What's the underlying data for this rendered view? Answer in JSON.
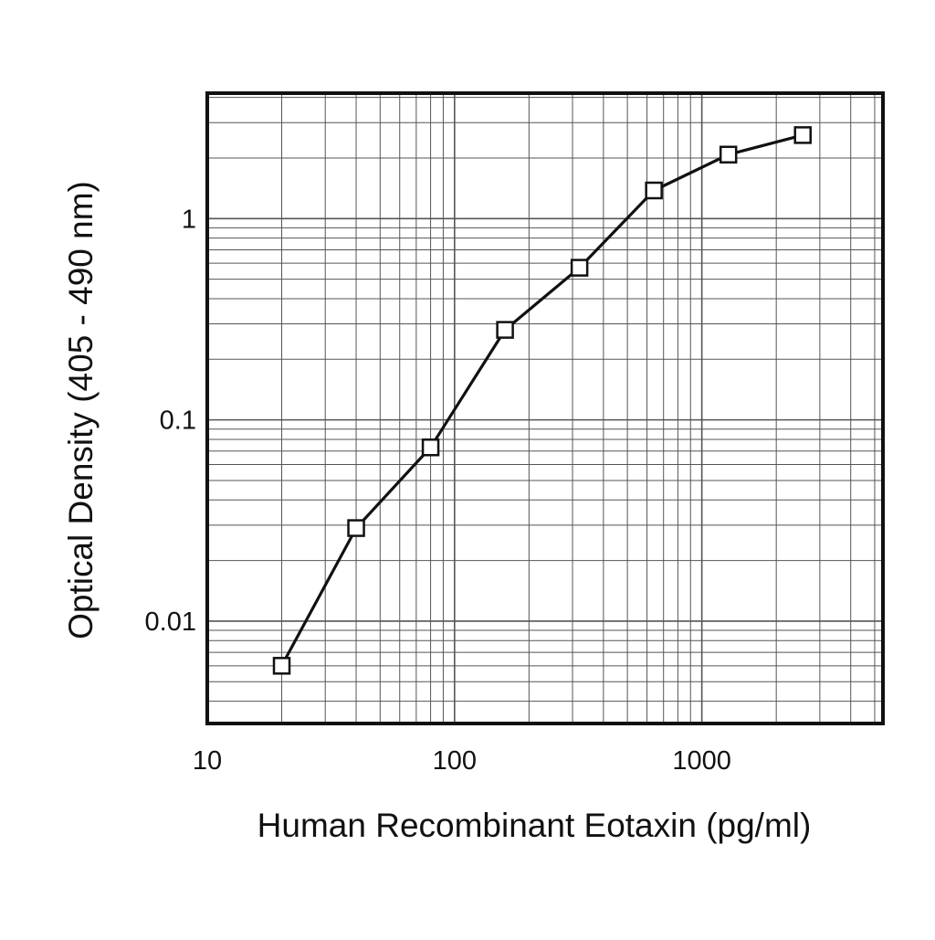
{
  "chart_data": {
    "type": "line",
    "xlabel": "Human Recombinant Eotaxin (pg/ml)",
    "ylabel": "Optical Density (405 - 490 nm)",
    "x_scale": "log",
    "y_scale": "log",
    "xlim": [
      10,
      5400
    ],
    "ylim": [
      0.0031,
      4.2
    ],
    "x_ticks": [
      {
        "value": 10,
        "label": "10"
      },
      {
        "value": 100,
        "label": "100"
      },
      {
        "value": 1000,
        "label": "1000"
      }
    ],
    "y_ticks": [
      {
        "value": 0.01,
        "label": "0.01"
      },
      {
        "value": 0.1,
        "label": "0.1"
      },
      {
        "value": 1,
        "label": "1"
      }
    ],
    "grid": true,
    "legend": "none",
    "marker": "open-square",
    "colors": {
      "line": "#111111",
      "grid": "#555555",
      "marker_fill": "#ffffff"
    },
    "series": [
      {
        "x": [
          20,
          40,
          80,
          160,
          320,
          640,
          1280,
          2560
        ],
        "values": [
          0.006,
          0.029,
          0.073,
          0.28,
          0.57,
          1.38,
          2.08,
          2.6
        ]
      }
    ]
  }
}
